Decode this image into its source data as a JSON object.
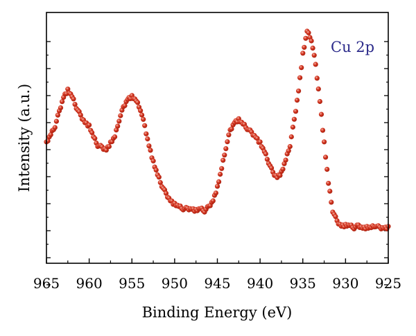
{
  "chart_data": {
    "type": "scatter",
    "title": "",
    "annotation": "Cu 2p",
    "xlabel": "Binding Energy (eV)",
    "ylabel": "Intensity (a.u.)",
    "x_reversed": true,
    "xlim": [
      965,
      925
    ],
    "ylim": [
      0,
      1
    ],
    "x_ticks": [
      "965",
      "960",
      "955",
      "950",
      "945",
      "940",
      "935",
      "930",
      "925"
    ],
    "y_tick_labels_shown": false,
    "grid": false,
    "legend": "none",
    "colors": {
      "marker": "#d2321e",
      "marker_highlight": "#f7b7a8",
      "annotation": "#2b2a8a",
      "axis": "#000000"
    },
    "series": [
      {
        "x": [
          965.0,
          964.5,
          964.0,
          963.5,
          963.0,
          962.5,
          962.0,
          961.5,
          961.0,
          960.5,
          960.0,
          959.5,
          959.0,
          958.5,
          958.0,
          957.5,
          957.0,
          956.5,
          956.0,
          955.5,
          955.0,
          954.5,
          954.0,
          953.5,
          953.0,
          952.5,
          952.0,
          951.5,
          951.0,
          950.5,
          950.0,
          949.5,
          949.0,
          948.5,
          948.0,
          947.5,
          947.0,
          946.5,
          946.0,
          945.5,
          945.0,
          944.5,
          944.0,
          943.5,
          943.0,
          942.5,
          942.0,
          941.5,
          941.0,
          940.5,
          940.0,
          939.5,
          939.0,
          938.5,
          938.0,
          937.5,
          937.0,
          936.5,
          936.0,
          935.5,
          935.0,
          934.5,
          934.0,
          933.5,
          933.0,
          932.5,
          932.0,
          931.5,
          931.0,
          930.5,
          930.0,
          929.5,
          929.0,
          928.5,
          928.0,
          927.5,
          927.0,
          926.5,
          926.0,
          925.5,
          925.0
        ],
        "y": [
          0.47,
          0.51,
          0.55,
          0.62,
          0.69,
          0.72,
          0.69,
          0.64,
          0.6,
          0.57,
          0.55,
          0.5,
          0.46,
          0.45,
          0.44,
          0.47,
          0.5,
          0.58,
          0.64,
          0.68,
          0.69,
          0.67,
          0.63,
          0.55,
          0.46,
          0.38,
          0.32,
          0.27,
          0.23,
          0.2,
          0.18,
          0.17,
          0.16,
          0.16,
          0.16,
          0.15,
          0.16,
          0.15,
          0.17,
          0.2,
          0.26,
          0.35,
          0.45,
          0.53,
          0.57,
          0.58,
          0.56,
          0.54,
          0.52,
          0.5,
          0.47,
          0.43,
          0.38,
          0.33,
          0.31,
          0.33,
          0.39,
          0.46,
          0.58,
          0.72,
          0.89,
          1.0,
          0.96,
          0.84,
          0.67,
          0.47,
          0.28,
          0.15,
          0.1,
          0.08,
          0.08,
          0.08,
          0.07,
          0.08,
          0.07,
          0.07,
          0.07,
          0.08,
          0.07,
          0.07,
          0.07
        ]
      }
    ]
  }
}
